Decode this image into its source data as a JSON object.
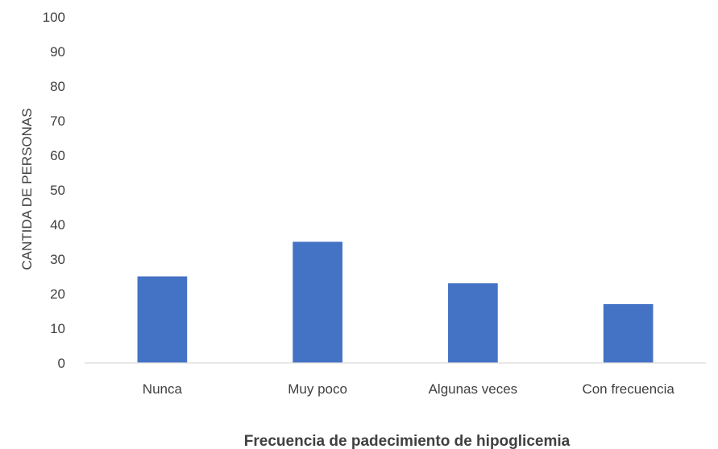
{
  "chart_data": {
    "type": "bar",
    "categories": [
      "Nunca",
      "Muy poco",
      "Algunas veces",
      "Con frecuencia"
    ],
    "values": [
      25,
      35,
      23,
      17
    ],
    "title": "",
    "xlabel": "Frecuencia de padecimiento de hipoglicemia",
    "ylabel": "CANTIDA DE PERSONAS",
    "ylim": [
      0,
      100
    ],
    "yticks": [
      0,
      10,
      20,
      30,
      40,
      50,
      60,
      70,
      80,
      90,
      100
    ],
    "grid": false,
    "legend": "none",
    "bar_color": "#4472C4",
    "axis_color": "#D9D9D9",
    "text_color": "#404040"
  }
}
